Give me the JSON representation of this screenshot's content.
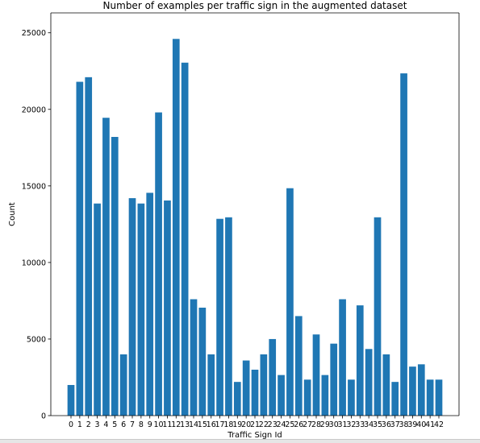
{
  "chart_data": {
    "type": "bar",
    "title": "Number of examples per traffic sign in the augmented dataset",
    "xlabel": "Traffic Sign Id",
    "ylabel": "Count",
    "categories": [
      "0",
      "1",
      "2",
      "3",
      "4",
      "5",
      "6",
      "7",
      "8",
      "9",
      "10",
      "11",
      "12",
      "13",
      "14",
      "15",
      "16",
      "17",
      "18",
      "19",
      "20",
      "21",
      "22",
      "23",
      "24",
      "25",
      "26",
      "27",
      "28",
      "29",
      "30",
      "31",
      "32",
      "33",
      "34",
      "35",
      "36",
      "37",
      "38",
      "39",
      "40",
      "41",
      "42"
    ],
    "values": [
      2000,
      21800,
      22100,
      13850,
      19450,
      18200,
      4000,
      14200,
      13850,
      14550,
      19800,
      14050,
      24600,
      23050,
      7600,
      7050,
      4000,
      12850,
      12950,
      2200,
      3600,
      3000,
      4000,
      5000,
      2650,
      14850,
      6500,
      2350,
      5300,
      2650,
      4700,
      7600,
      2350,
      7200,
      4350,
      12950,
      4000,
      2200,
      22350,
      3200,
      3350,
      2350,
      2350
    ],
    "ylim": [
      0,
      26300
    ],
    "yticks": [
      0,
      5000,
      10000,
      15000,
      20000,
      25000
    ],
    "grid": false,
    "bar_color": "#1f77b4"
  }
}
